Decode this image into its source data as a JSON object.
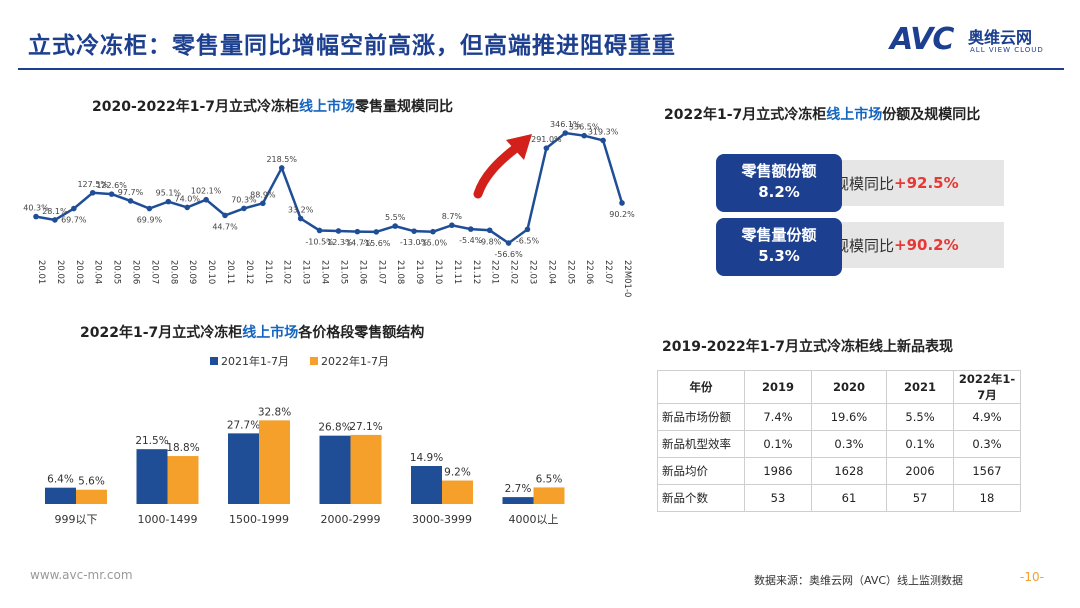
{
  "title": "立式冷冻柜：零售量同比增幅空前高涨，但高端推进阻碍重重",
  "logo": {
    "mark": "AVC",
    "cn": "奥维云网",
    "en": "ALL VIEW CLOUD"
  },
  "colors": {
    "navy": "#1d3f8f",
    "blue": "#1f4e96",
    "orange": "#f5a02a",
    "red": "#e53935"
  },
  "line_section": {
    "pre": "2020-2022年1-7月立式冷冻柜",
    "hl": "线上市场",
    "post": "零售量规模同比"
  },
  "share_section": {
    "pre": "2022年1-7月立式冷冻柜",
    "hl": "线上市场",
    "post": "份额及规模同比"
  },
  "bar_section": {
    "pre": "2022年1-7月立式冷冻柜",
    "hl": "线上市场",
    "post": "各价格段零售额结构"
  },
  "table_section": {
    "title": "2019-2022年1-7月立式冷冻柜线上新品表现"
  },
  "cards": [
    {
      "l1": "零售额份额",
      "l2": "8.2%",
      "label": "规模同比",
      "pct": "+92.5%"
    },
    {
      "l1": "零售量份额",
      "l2": "5.3%",
      "label": "规模同比",
      "pct": "+90.2%"
    }
  ],
  "table": {
    "headers": [
      "年份",
      "2019",
      "2020",
      "2021",
      "2022年1-7月"
    ],
    "rows": [
      [
        "新品市场份额",
        "7.4%",
        "19.6%",
        "5.5%",
        "4.9%"
      ],
      [
        "新品机型效率",
        "0.1%",
        "0.3%",
        "0.1%",
        "0.3%"
      ],
      [
        "新品均价",
        "1986",
        "1628",
        "2006",
        "1567"
      ],
      [
        "新品个数",
        "53",
        "61",
        "57",
        "18"
      ]
    ]
  },
  "chart_data": [
    {
      "type": "line",
      "x": [
        "20.01",
        "20.02",
        "20.03",
        "20.04",
        "20.05",
        "20.06",
        "20.07",
        "20.08",
        "20.09",
        "20.10",
        "20.11",
        "20.12",
        "21.01",
        "21.02",
        "21.03",
        "21.04",
        "21.05",
        "21.06",
        "21.07",
        "21.08",
        "21.09",
        "21.10",
        "21.11",
        "21.12",
        "22.01",
        "22.02",
        "22.03",
        "22.04",
        "22.05",
        "22.06",
        "22.07",
        "22M01-07"
      ],
      "y": [
        40.3,
        28.1,
        69.7,
        127.5,
        122.6,
        97.7,
        69.9,
        95.1,
        74.0,
        102.1,
        44.7,
        70.3,
        88.9,
        218.5,
        33.2,
        -10.5,
        -12.3,
        -14.7,
        -15.6,
        5.5,
        -13.0,
        -15.0,
        8.7,
        -5.4,
        -9.8,
        -56.6,
        -6.5,
        291.0,
        346.1,
        336.5,
        319.3,
        90.2
      ],
      "data_labels": [
        "40.3%",
        "28.1%",
        "69.7%",
        "127.5%",
        "122.6%",
        "97.7%",
        "69.9%",
        "95.1%",
        "74.0%",
        "102.1%",
        "44.7%",
        "70.3%",
        "88.9%",
        "218.5%",
        "33.2%",
        "-10.5%",
        "-12.3%",
        "-14.7%",
        "-15.6%",
        "5.5%",
        "-13.0%",
        "-15.0%",
        "8.7%",
        "-5.4%",
        "-9.8%",
        "-56.6%",
        "-6.5%",
        "291.0%",
        "346.1%",
        "336.5%",
        "319.3%",
        "90.2%"
      ],
      "color": "#1f4e96"
    },
    {
      "type": "bar",
      "categories": [
        "999以下",
        "1000-1499",
        "1500-1999",
        "2000-2999",
        "3000-3999",
        "4000以上"
      ],
      "series": [
        {
          "name": "2021年1-7月",
          "values": [
            6.4,
            21.5,
            27.7,
            26.8,
            14.9,
            2.7
          ],
          "labels": [
            "6.4%",
            "21.5%",
            "27.7%",
            "26.8%",
            "14.9%",
            "2.7%"
          ],
          "color": "#1f4e96"
        },
        {
          "name": "2022年1-7月",
          "values": [
            5.6,
            18.8,
            32.8,
            27.1,
            9.2,
            6.5
          ],
          "labels": [
            "5.6%",
            "18.8%",
            "32.8%",
            "27.1%",
            "9.2%",
            "6.5%"
          ],
          "color": "#f5a02a"
        }
      ],
      "legend": "top"
    }
  ],
  "footer": {
    "url": "www.avc-mr.com",
    "source": "数据来源：奥维云网（AVC）线上监测数据",
    "page": "-10-"
  }
}
